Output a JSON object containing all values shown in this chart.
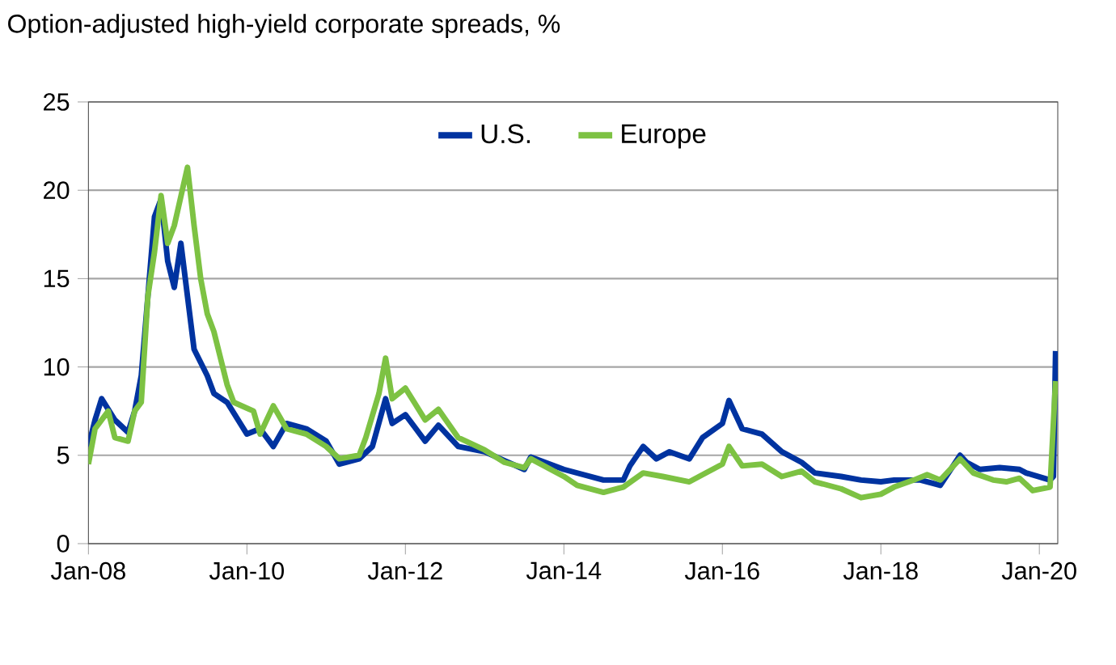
{
  "chart_data": {
    "type": "line",
    "title": "Option-adjusted high-yield corporate spreads, %",
    "xlim": [
      "2008-01",
      "2020-03-25"
    ],
    "ylim": [
      0,
      25
    ],
    "yticks": [
      0,
      5,
      10,
      15,
      20,
      25
    ],
    "xticks": [
      {
        "value": "2008-01",
        "label": "Jan-08"
      },
      {
        "value": "2010-01",
        "label": "Jan-10"
      },
      {
        "value": "2012-01",
        "label": "Jan-12"
      },
      {
        "value": "2014-01",
        "label": "Jan-14"
      },
      {
        "value": "2016-01",
        "label": "Jan-16"
      },
      {
        "value": "2018-01",
        "label": "Jan-18"
      },
      {
        "value": "2020-01",
        "label": "Jan-20"
      }
    ],
    "grid": "y",
    "legend": "top",
    "marker": "none",
    "line_style": "solid",
    "series": [
      {
        "name": "U.S.",
        "color": "#0033a0",
        "x": [
          "2008-01",
          "2008-02",
          "2008-03",
          "2008-05",
          "2008-07",
          "2008-08",
          "2008-09",
          "2008-10",
          "2008-11",
          "2008-12",
          "2009-01",
          "2009-02",
          "2009-03",
          "2009-04",
          "2009-05",
          "2009-07",
          "2009-08",
          "2009-10",
          "2010-01",
          "2010-03",
          "2010-05",
          "2010-07",
          "2010-10",
          "2011-01",
          "2011-03",
          "2011-06",
          "2011-08",
          "2011-10",
          "2011-11",
          "2012-01",
          "2012-04",
          "2012-06",
          "2012-09",
          "2013-01",
          "2013-04",
          "2013-07",
          "2013-08",
          "2014-01",
          "2014-03",
          "2014-07",
          "2014-10",
          "2014-11",
          "2015-01",
          "2015-03",
          "2015-05",
          "2015-08",
          "2015-10",
          "2016-01",
          "2016-02",
          "2016-04",
          "2016-07",
          "2016-10",
          "2017-01",
          "2017-03",
          "2017-07",
          "2017-10",
          "2018-01",
          "2018-03",
          "2018-07",
          "2018-10",
          "2019-01",
          "2019-02",
          "2019-04",
          "2019-07",
          "2019-10",
          "2019-11",
          "2020-02-20",
          "2020-03-05",
          "2020-03-15"
        ],
        "values": [
          5.5,
          7.0,
          8.2,
          7.0,
          6.3,
          7.5,
          9.5,
          14,
          18.5,
          19.5,
          16,
          14.5,
          17,
          14,
          11,
          9.5,
          8.5,
          8,
          6.2,
          6.5,
          5.5,
          6.8,
          6.5,
          5.8,
          4.5,
          4.8,
          5.5,
          8.2,
          6.8,
          7.3,
          5.8,
          6.7,
          5.5,
          5.2,
          4.7,
          4.2,
          4.9,
          4.2,
          4.0,
          3.6,
          3.6,
          4.4,
          5.5,
          4.8,
          5.2,
          4.8,
          6.0,
          6.8,
          8.1,
          6.5,
          6.2,
          5.2,
          4.6,
          4.0,
          3.8,
          3.6,
          3.5,
          3.6,
          3.6,
          3.3,
          5.0,
          4.6,
          4.2,
          4.3,
          4.2,
          4.0,
          3.6,
          3.8,
          10.9
        ]
      },
      {
        "name": "Europe",
        "color": "#7dc243",
        "x": [
          "2008-01",
          "2008-02",
          "2008-04",
          "2008-05",
          "2008-07",
          "2008-08",
          "2008-09",
          "2008-10",
          "2008-11",
          "2008-12",
          "2009-01",
          "2009-02",
          "2009-04",
          "2009-05",
          "2009-06",
          "2009-07",
          "2009-08",
          "2009-10",
          "2009-11",
          "2010-02",
          "2010-03",
          "2010-05",
          "2010-07",
          "2010-10",
          "2011-01",
          "2011-03",
          "2011-06",
          "2011-07",
          "2011-09",
          "2011-10",
          "2011-11",
          "2012-01",
          "2012-04",
          "2012-06",
          "2012-09",
          "2013-01",
          "2013-04",
          "2013-07",
          "2013-08",
          "2014-01",
          "2014-03",
          "2014-07",
          "2014-10",
          "2015-01",
          "2015-04",
          "2015-08",
          "2015-10",
          "2016-01",
          "2016-02",
          "2016-04",
          "2016-07",
          "2016-10",
          "2017-01",
          "2017-03",
          "2017-07",
          "2017-10",
          "2018-01",
          "2018-03",
          "2018-06",
          "2018-08",
          "2018-10",
          "2019-01",
          "2019-03",
          "2019-06",
          "2019-08",
          "2019-10",
          "2019-12",
          "2020-02-20",
          "2020-03-15"
        ],
        "values": [
          4.5,
          6.5,
          7.5,
          6.0,
          5.8,
          7.5,
          8.0,
          14,
          16.5,
          19.7,
          17,
          18,
          21.3,
          18,
          15,
          13,
          12,
          9,
          8,
          7.5,
          6.2,
          7.8,
          6.5,
          6.2,
          5.5,
          4.8,
          5.0,
          6.0,
          8.5,
          10.5,
          8.2,
          8.8,
          7.0,
          7.6,
          6.0,
          5.3,
          4.6,
          4.3,
          4.8,
          3.8,
          3.3,
          2.9,
          3.2,
          4.0,
          3.8,
          3.5,
          3.9,
          4.5,
          5.5,
          4.4,
          4.5,
          3.8,
          4.1,
          3.5,
          3.1,
          2.6,
          2.8,
          3.2,
          3.6,
          3.9,
          3.6,
          4.8,
          4.0,
          3.6,
          3.5,
          3.7,
          3.0,
          3.2,
          9.2
        ]
      }
    ]
  }
}
